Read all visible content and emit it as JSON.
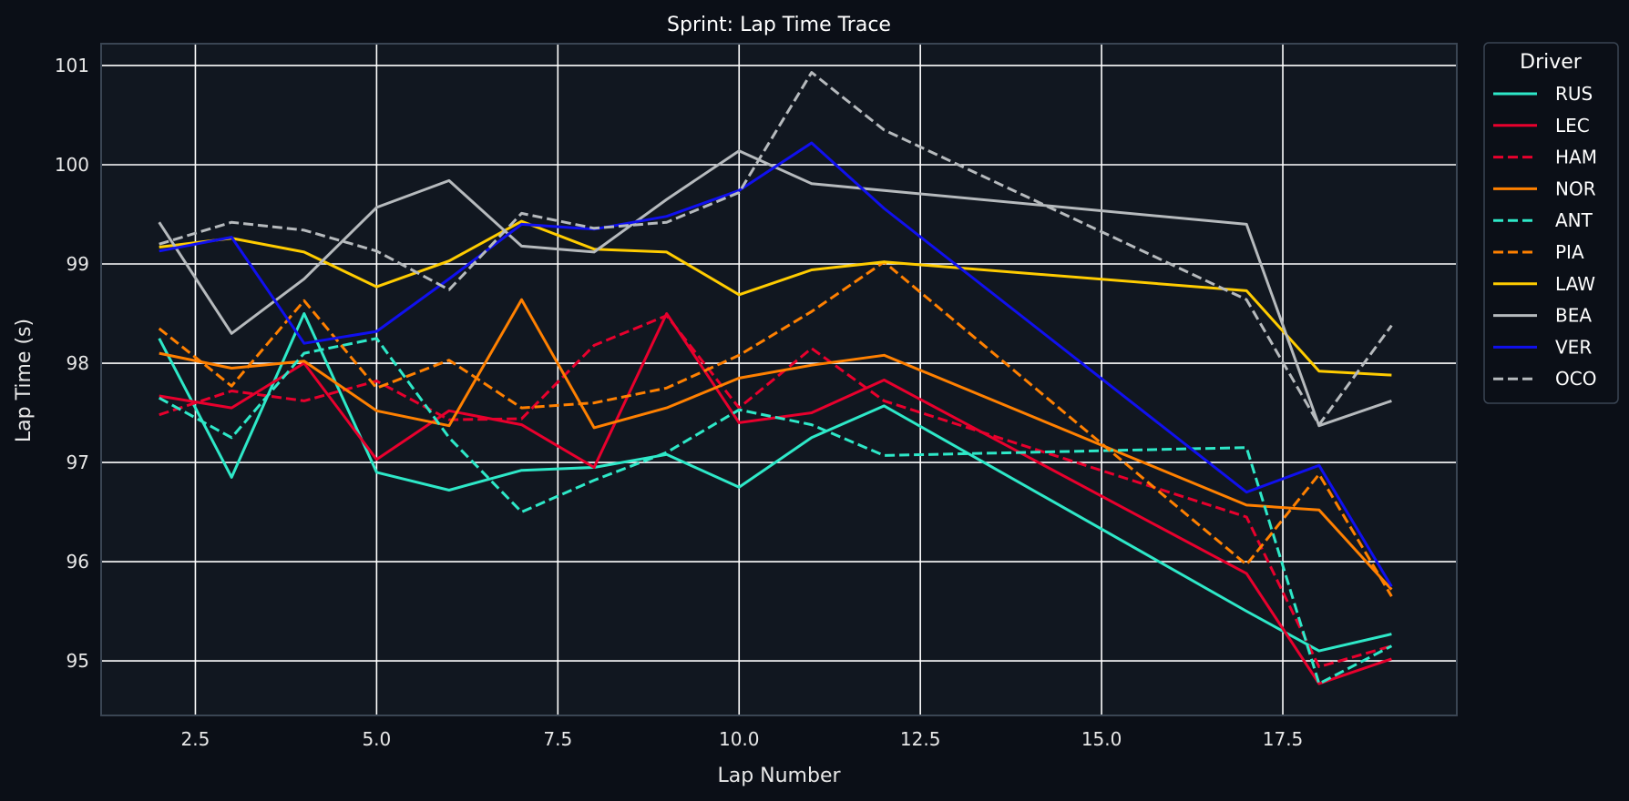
{
  "chart_data": {
    "type": "line",
    "title": "Sprint: Lap Time Trace",
    "xlabel": "Lap Number",
    "ylabel": "Lap Time (s)",
    "xlim": [
      1.2,
      19.9
    ],
    "ylim": [
      94.45,
      101.22
    ],
    "xticks": [
      2.5,
      5.0,
      7.5,
      10.0,
      12.5,
      15.0,
      17.5
    ],
    "xtick_labels": [
      "2.5",
      "5.0",
      "7.5",
      "10.0",
      "12.5",
      "15.0",
      "17.5"
    ],
    "yticks": [
      95,
      96,
      97,
      98,
      99,
      100,
      101
    ],
    "ytick_labels": [
      "95",
      "96",
      "97",
      "98",
      "99",
      "100",
      "101"
    ],
    "grid": true,
    "legend": {
      "title": "Driver",
      "position": "outside-right-top"
    },
    "colors": {
      "background": "#0b0f17",
      "plot_background": "#111720",
      "grid": "#ffffff",
      "frame": "#3a4553"
    },
    "series": [
      {
        "name": "RUS",
        "color": "#2ee8c8",
        "dash": "solid",
        "x": [
          2,
          3,
          4,
          5,
          6,
          7,
          8,
          9,
          10,
          11,
          12,
          17,
          18,
          19
        ],
        "y": [
          98.25,
          96.85,
          98.5,
          96.9,
          96.72,
          96.92,
          96.95,
          97.08,
          96.75,
          97.25,
          97.57,
          95.5,
          95.1,
          95.27
        ]
      },
      {
        "name": "LEC",
        "color": "#e8002d",
        "dash": "solid",
        "x": [
          2,
          3,
          4,
          5,
          6,
          7,
          8,
          9,
          10,
          11,
          12,
          17,
          18,
          19
        ],
        "y": [
          97.67,
          97.55,
          98.0,
          97.03,
          97.52,
          97.38,
          96.95,
          98.5,
          97.4,
          97.5,
          97.83,
          95.88,
          94.77,
          95.02
        ]
      },
      {
        "name": "HAM",
        "color": "#e8002d",
        "dash": "dashed",
        "x": [
          2,
          3,
          4,
          5,
          6,
          7,
          8,
          9,
          10,
          11,
          12,
          17,
          18,
          19
        ],
        "y": [
          97.48,
          97.72,
          97.62,
          97.82,
          97.43,
          97.44,
          98.18,
          98.48,
          97.55,
          98.15,
          97.62,
          96.45,
          94.94,
          95.15
        ]
      },
      {
        "name": "NOR",
        "color": "#ff8000",
        "dash": "solid",
        "x": [
          2,
          3,
          4,
          5,
          6,
          7,
          8,
          9,
          10,
          11,
          12,
          17,
          18,
          19
        ],
        "y": [
          98.1,
          97.95,
          98.02,
          97.52,
          97.37,
          98.64,
          97.35,
          97.55,
          97.85,
          97.98,
          98.08,
          96.57,
          96.52,
          95.72
        ]
      },
      {
        "name": "ANT",
        "color": "#2ee8c8",
        "dash": "dashed",
        "x": [
          2,
          3,
          4,
          5,
          6,
          7,
          8,
          9,
          10,
          11,
          12,
          17,
          18,
          19
        ],
        "y": [
          97.65,
          97.25,
          98.1,
          98.25,
          97.25,
          96.5,
          96.82,
          97.1,
          97.53,
          97.38,
          97.07,
          97.15,
          94.77,
          95.15
        ]
      },
      {
        "name": "PIA",
        "color": "#ff8000",
        "dash": "dashed",
        "x": [
          2,
          3,
          4,
          5,
          6,
          7,
          8,
          9,
          10,
          11,
          12,
          17,
          18,
          19
        ],
        "y": [
          98.35,
          97.77,
          98.63,
          97.75,
          98.03,
          97.55,
          97.6,
          97.75,
          98.08,
          98.52,
          99.02,
          95.97,
          96.88,
          95.65
        ]
      },
      {
        "name": "LAW",
        "color": "#ffcc00",
        "dash": "solid",
        "x": [
          2,
          3,
          4,
          5,
          6,
          7,
          8,
          9,
          10,
          11,
          12,
          17,
          18,
          19
        ],
        "y": [
          99.17,
          99.26,
          99.12,
          98.77,
          99.03,
          99.43,
          99.15,
          99.12,
          98.69,
          98.94,
          99.02,
          98.73,
          97.92,
          97.88
        ]
      },
      {
        "name": "BEA",
        "color": "#b6babd",
        "dash": "solid",
        "x": [
          2,
          3,
          4,
          5,
          6,
          7,
          8,
          9,
          10,
          11,
          12,
          17,
          18,
          19
        ],
        "y": [
          99.42,
          98.3,
          98.85,
          99.57,
          99.84,
          99.18,
          99.12,
          99.65,
          100.14,
          99.81,
          99.74,
          99.4,
          97.37,
          97.62
        ]
      },
      {
        "name": "VER",
        "color": "#1010ee",
        "dash": "solid",
        "x": [
          2,
          3,
          4,
          5,
          6,
          7,
          8,
          9,
          10,
          11,
          12,
          17,
          18,
          19
        ],
        "y": [
          99.13,
          99.27,
          98.2,
          98.32,
          98.85,
          99.4,
          99.35,
          99.48,
          99.74,
          100.22,
          99.56,
          96.7,
          96.97,
          95.75
        ]
      },
      {
        "name": "OCO",
        "color": "#b6babd",
        "dash": "dashed",
        "x": [
          2,
          3,
          4,
          5,
          6,
          7,
          8,
          9,
          10,
          11,
          12,
          17,
          18,
          19
        ],
        "y": [
          99.2,
          99.42,
          99.34,
          99.13,
          98.74,
          99.51,
          99.36,
          99.42,
          99.72,
          100.93,
          100.35,
          98.64,
          97.38,
          98.38
        ]
      }
    ]
  }
}
